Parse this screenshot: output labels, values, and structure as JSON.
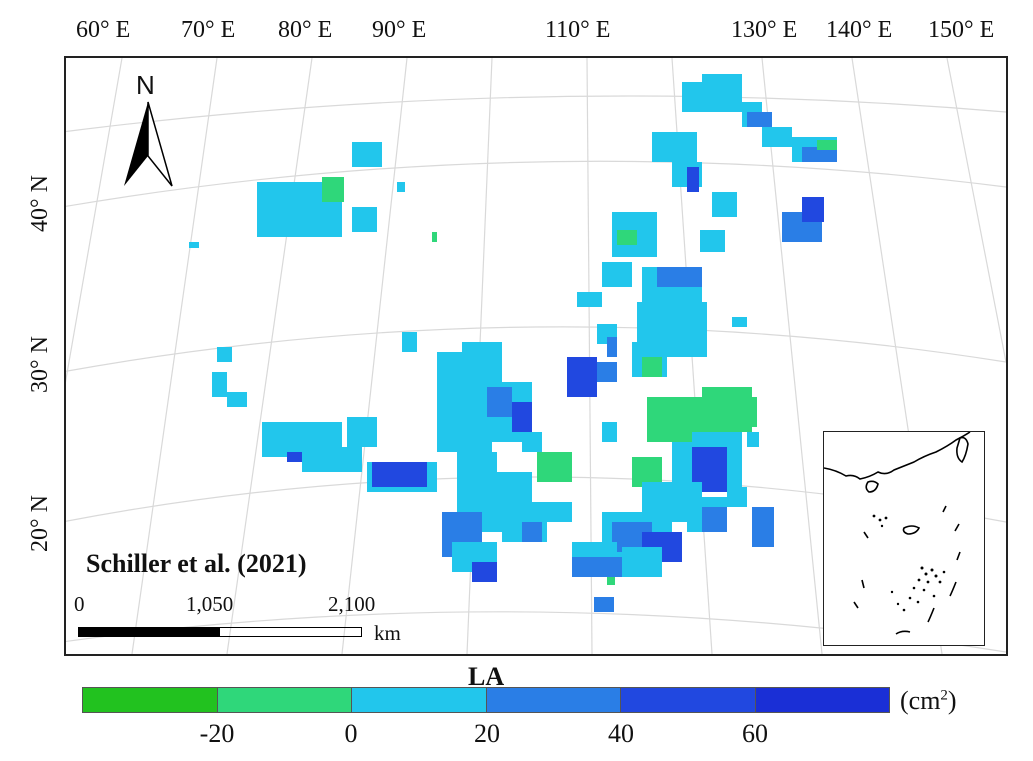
{
  "map": {
    "lon_labels": [
      "60° E",
      "70° E",
      "80° E",
      "90° E",
      "110° E",
      "130° E",
      "140° E",
      "150° E"
    ],
    "lat_labels": [
      "40° N",
      "30° N",
      "20° N"
    ],
    "north_arrow": "N",
    "north_icon": "north-arrow-icon",
    "source": "Schiller et al. (2021)",
    "scale": {
      "labels": [
        "0",
        "1,050",
        "2,100"
      ],
      "unit": "km"
    },
    "background": "#ffffff",
    "graticule_color": "#d9d9d9"
  },
  "legend": {
    "title": "LA",
    "unit_main": "(cm",
    "unit_sup": "2",
    "unit_end": ")",
    "ticks": [
      "-20",
      "0",
      "20",
      "40",
      "60"
    ],
    "colors": [
      "#22c21f",
      "#2fd77a",
      "#22c6ec",
      "#2a7ee6",
      "#2148e0",
      "#1a2fd6"
    ]
  }
}
